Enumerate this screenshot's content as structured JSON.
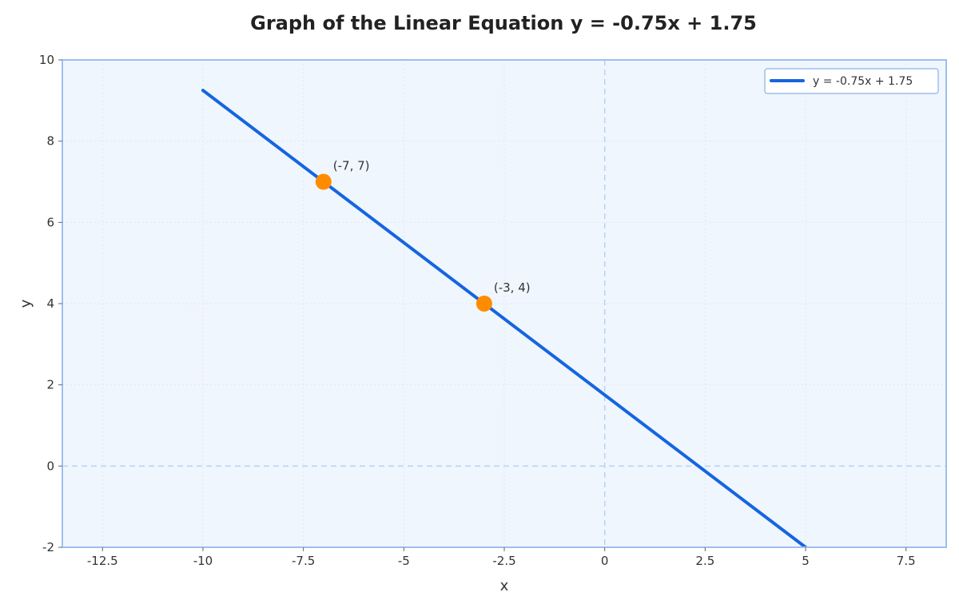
{
  "chart_data": {
    "type": "line",
    "title": "Graph of the Linear Equation y = -0.75x + 1.75",
    "xlabel": "x",
    "ylabel": "y",
    "xlim": [
      -13.5,
      8.5
    ],
    "ylim": [
      -2,
      10
    ],
    "x_ticks": [
      -12.5,
      -10,
      -7.5,
      -5,
      -2.5,
      0,
      2.5,
      5,
      7.5
    ],
    "x_tick_labels": [
      "-12.5",
      "-10",
      "-7.5",
      "-5",
      "-2.5",
      "0",
      "2.5",
      "5",
      "7.5"
    ],
    "y_ticks": [
      -2,
      0,
      2,
      4,
      6,
      8,
      10
    ],
    "y_tick_labels": [
      "-2",
      "0",
      "2",
      "4",
      "6",
      "8",
      "10"
    ],
    "grid": true,
    "legend_position": "top-right",
    "series": [
      {
        "name": "y = -0.75x + 1.75",
        "slope": -0.75,
        "intercept": 1.75,
        "x_range": [
          -10,
          5
        ],
        "color": "#1565e0"
      }
    ],
    "points": [
      {
        "x": -7,
        "y": 7,
        "label": "(-7, 7)"
      },
      {
        "x": -3,
        "y": 4,
        "label": "(-3, 4)"
      }
    ],
    "colors": {
      "line": "#1565e0",
      "points": "#ff8c00",
      "plot_background": "#f0f6fd",
      "frame": "#9dbff0",
      "zero_lines": "#b7d2f2",
      "grid": "#dde8f6"
    }
  }
}
